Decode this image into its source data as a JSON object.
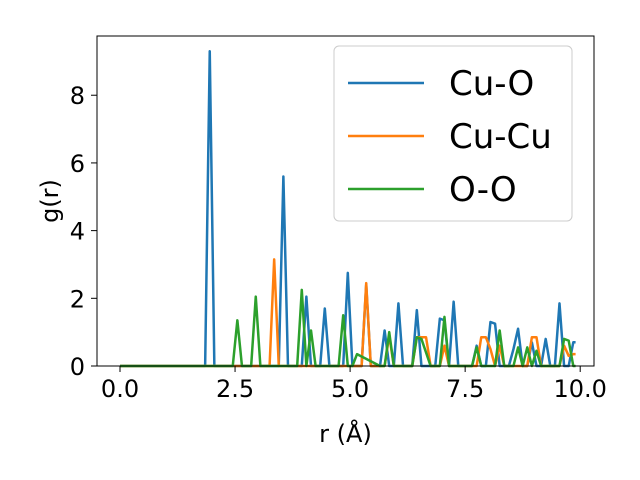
{
  "chart_data": {
    "type": "line",
    "xlabel": "r (Å)",
    "ylabel": "g(r)",
    "xlim": [
      -0.5,
      10.3
    ],
    "ylim": [
      0,
      9.75
    ],
    "xticks": [
      0.0,
      2.5,
      5.0,
      7.5,
      10.0
    ],
    "xtick_labels": [
      "0.0",
      "2.5",
      "5.0",
      "7.5",
      "10.0"
    ],
    "yticks": [
      0,
      2,
      4,
      6,
      8
    ],
    "ytick_labels": [
      "0",
      "2",
      "4",
      "6",
      "8"
    ],
    "grid": false,
    "legend_position": "upper-right",
    "series": [
      {
        "name": "Cu-O",
        "color": "#1f77b4",
        "x": [
          0.0,
          1.8,
          1.85,
          1.95,
          2.05,
          2.1,
          3.4,
          3.45,
          3.55,
          3.65,
          3.75,
          3.85,
          3.95,
          4.05,
          4.15,
          4.25,
          4.35,
          4.45,
          4.55,
          4.65,
          4.75,
          4.85,
          4.95,
          5.05,
          5.15,
          5.25,
          5.35,
          5.45,
          5.55,
          5.65,
          5.75,
          5.85,
          5.95,
          6.05,
          6.15,
          6.25,
          6.35,
          6.45,
          6.55,
          6.65,
          6.75,
          6.85,
          6.95,
          7.05,
          7.15,
          7.25,
          7.35,
          7.45,
          7.55,
          7.65,
          7.75,
          7.85,
          7.95,
          8.05,
          8.15,
          8.25,
          8.35,
          8.45,
          8.55,
          8.65,
          8.75,
          8.85,
          8.95,
          9.05,
          9.15,
          9.25,
          9.35,
          9.45,
          9.55,
          9.65,
          9.75,
          9.85,
          9.9
        ],
        "y": [
          0.0,
          0.0,
          0.0,
          9.3,
          0.0,
          0.0,
          0.0,
          0.0,
          5.6,
          0.0,
          0.0,
          0.0,
          0.0,
          2.05,
          0.0,
          0.0,
          0.0,
          1.7,
          0.0,
          0.0,
          0.0,
          0.0,
          2.75,
          0.0,
          0.0,
          0.0,
          2.4,
          0.0,
          0.0,
          0.0,
          1.05,
          0.0,
          0.0,
          1.85,
          0.0,
          0.0,
          0.0,
          1.65,
          0.0,
          0.0,
          0.0,
          0.0,
          1.4,
          1.35,
          0.0,
          1.9,
          0.0,
          0.0,
          0.0,
          0.0,
          0.6,
          0.0,
          0.0,
          1.3,
          1.25,
          0.0,
          0.0,
          0.0,
          0.5,
          1.1,
          0.0,
          0.0,
          0.7,
          0.0,
          0.0,
          0.8,
          0.0,
          0.0,
          1.85,
          0.0,
          0.0,
          0.7,
          0.7
        ]
      },
      {
        "name": "Cu-Cu",
        "color": "#ff7f0e",
        "x": [
          0.0,
          3.2,
          3.25,
          3.35,
          3.45,
          3.5,
          5.2,
          5.25,
          5.35,
          5.45,
          5.5,
          5.75,
          5.85,
          5.95,
          6.35,
          6.45,
          6.55,
          6.65,
          6.75,
          6.95,
          7.05,
          7.15,
          7.75,
          7.85,
          7.95,
          8.05,
          8.15,
          8.25,
          8.35,
          8.85,
          8.95,
          9.05,
          9.15,
          9.25,
          9.35,
          9.55,
          9.65,
          9.75,
          9.85,
          9.9
        ],
        "y": [
          0.0,
          0.0,
          0.0,
          3.15,
          0.0,
          0.0,
          0.0,
          0.0,
          2.45,
          0.0,
          0.0,
          0.0,
          0.9,
          0.0,
          0.0,
          0.85,
          0.85,
          0.85,
          0.0,
          0.0,
          0.6,
          0.0,
          0.0,
          0.85,
          0.85,
          0.5,
          0.0,
          0.6,
          0.0,
          0.0,
          0.85,
          0.85,
          0.0,
          0.0,
          0.0,
          0.0,
          0.6,
          0.3,
          0.35,
          0.35
        ]
      },
      {
        "name": "O-O",
        "color": "#2ca02c",
        "x": [
          0.0,
          2.4,
          2.45,
          2.55,
          2.65,
          2.75,
          2.85,
          2.95,
          3.05,
          3.15,
          3.75,
          3.85,
          3.95,
          4.05,
          4.15,
          4.25,
          4.55,
          4.65,
          4.75,
          4.85,
          4.95,
          5.05,
          5.15,
          5.65,
          5.75,
          5.85,
          5.95,
          6.25,
          6.35,
          6.45,
          6.55,
          6.75,
          6.85,
          6.95,
          7.05,
          7.15,
          7.55,
          7.65,
          7.75,
          7.85,
          7.95,
          8.05,
          8.15,
          8.25,
          8.35,
          8.55,
          8.65,
          8.75,
          8.85,
          8.95,
          9.05,
          9.15,
          9.25,
          9.55,
          9.65,
          9.75,
          9.85,
          9.9
        ],
        "y": [
          0.0,
          0.0,
          0.0,
          1.35,
          0.0,
          0.0,
          0.0,
          2.05,
          0.0,
          0.0,
          0.0,
          0.0,
          2.25,
          0.0,
          1.05,
          0.0,
          0.0,
          0.0,
          0.0,
          1.5,
          0.0,
          0.0,
          0.35,
          0.0,
          0.0,
          1.0,
          0.0,
          0.0,
          0.0,
          0.85,
          0.8,
          0.0,
          0.0,
          0.0,
          1.45,
          0.0,
          0.0,
          0.0,
          0.55,
          0.0,
          0.0,
          0.0,
          0.0,
          1.05,
          0.0,
          0.0,
          0.55,
          0.0,
          0.55,
          0.0,
          0.45,
          0.0,
          0.0,
          0.0,
          0.8,
          0.75,
          0.0,
          0.0
        ]
      }
    ]
  }
}
